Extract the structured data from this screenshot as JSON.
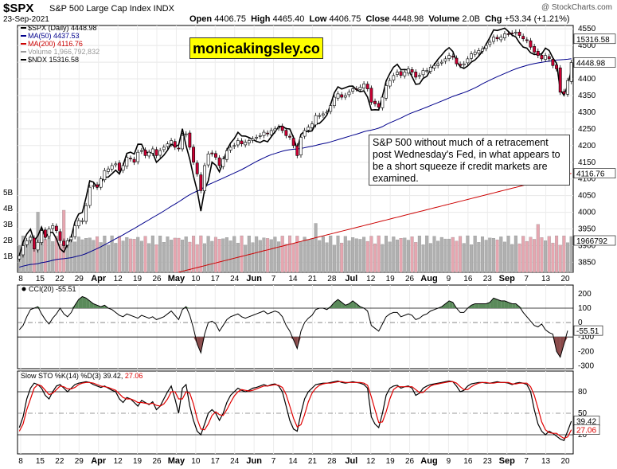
{
  "header": {
    "ticker": "$SPX",
    "description": "S&P 500 Large Cap Index INDX",
    "date": "23-Sep-2021",
    "open_label": "Open",
    "open": "4406.75",
    "high_label": "High",
    "high": "4465.40",
    "low_label": "Low",
    "low": "4406.75",
    "close_label": "Close",
    "close": "4448.98",
    "volume_label": "Volume",
    "volume": "2.0B",
    "chg_label": "Chg",
    "chg": "+53.34 (+1.21%)",
    "credit": "@ StockCharts.com"
  },
  "watermark": "monicakingsley.co",
  "annotation": "S&P 500 without much of a retracement post Wednesday's Fed, in what appears to be a short squeeze if credit markets are examined.",
  "colors": {
    "up_candle": "#ffffff",
    "down_candle": "#cc0033",
    "ma50": "#00008b",
    "ma200": "#cc0000",
    "ndx": "#000000",
    "volume_up": "#b0b0b0",
    "volume_down": "#e6a6b0",
    "cci_fill": "#5a8a5a",
    "cci_neg_fill": "#8a4a4a",
    "sto_k": "#000000",
    "sto_d": "#e00000"
  },
  "chart_data": [
    {
      "type": "candlestick",
      "legend": [
        {
          "label": "$SPX (Daily) 4448.98",
          "color": "#000000"
        },
        {
          "label": "MA(50) 4437.53",
          "color": "#00008b"
        },
        {
          "label": "MA(200) 4116.76",
          "color": "#cc0000"
        },
        {
          "label": "Volume 1,966,792,832",
          "color": "#999999"
        },
        {
          "label": "$NDX 15316.58",
          "color": "#000000"
        }
      ],
      "y_ticks": [
        "4550",
        "4500",
        "4450",
        "4400",
        "4350",
        "4300",
        "4250",
        "4200",
        "4150",
        "4100",
        "4050",
        "4000",
        "3950",
        "3900",
        "3850"
      ],
      "ylim": [
        3820,
        4560
      ],
      "value_tags": [
        "15316.58",
        "4448.98",
        "4116.76",
        "1966792"
      ],
      "volume_ticks": [
        "5B",
        "4B",
        "3B",
        "2B",
        "1B"
      ],
      "x_ticks": [
        "8",
        "15",
        "22",
        "29",
        "Apr",
        "12",
        "19",
        "26",
        "May",
        "10",
        "17",
        "24",
        "Jun",
        "7",
        "14",
        "21",
        "28",
        "Jul",
        "12",
        "19",
        "26",
        "Aug",
        "9",
        "16",
        "23",
        "Sep",
        "7",
        "13",
        "20"
      ],
      "spx_close": [
        3870,
        3900,
        3915,
        3925,
        3890,
        3910,
        3945,
        3925,
        3950,
        3960,
        3945,
        3915,
        3900,
        3915,
        3925,
        3960,
        3975,
        3975,
        4020,
        4075,
        4080,
        4075,
        4100,
        4125,
        4130,
        4140,
        4145,
        4125,
        4140,
        4165,
        4160,
        4150,
        4180,
        4185,
        4170,
        4180,
        4190,
        4170,
        4185,
        4195,
        4205,
        4215,
        4195,
        4190,
        4230,
        4235,
        4195,
        4150,
        4115,
        4065,
        4140,
        4175,
        4175,
        4165,
        4140,
        4160,
        4185,
        4195,
        4200,
        4215,
        4205,
        4210,
        4215,
        4220,
        4225,
        4230,
        4240,
        4235,
        4245,
        4250,
        4255,
        4245,
        4230,
        4225,
        4200,
        4170,
        4225,
        4245,
        4255,
        4265,
        4290,
        4290,
        4295,
        4300,
        4320,
        4345,
        4355,
        4345,
        4350,
        4360,
        4370,
        4370,
        4375,
        4385,
        4370,
        4330,
        4325,
        4315,
        4345,
        4380,
        4395,
        4410,
        4420,
        4410,
        4420,
        4430,
        4420,
        4405,
        4410,
        4425,
        4425,
        4435,
        4440,
        4445,
        4450,
        4460,
        4470,
        4465,
        4445,
        4440,
        4445,
        4460,
        4475,
        4480,
        4485,
        4490,
        4500,
        4510,
        4525,
        4520,
        4525,
        4535,
        4535,
        4535,
        4540,
        4530,
        4520,
        4515,
        4495,
        4480,
        4470,
        4460,
        4470,
        4460,
        4440,
        4430,
        4360,
        4355,
        4395,
        4449
      ]
    },
    {
      "type": "line",
      "title": "CCI(20) -55.51",
      "y_ticks": [
        "200",
        "100",
        "0",
        "-100",
        "-200",
        "-300"
      ],
      "ylim": [
        -320,
        260
      ],
      "value_tag": "-55.51",
      "values": [
        -50,
        -20,
        40,
        90,
        100,
        110,
        60,
        20,
        -10,
        30,
        60,
        100,
        60,
        40,
        70,
        120,
        160,
        180,
        170,
        150,
        130,
        120,
        110,
        120,
        100,
        90,
        70,
        50,
        40,
        60,
        50,
        40,
        30,
        50,
        40,
        30,
        40,
        20,
        30,
        40,
        60,
        80,
        50,
        20,
        90,
        110,
        50,
        -40,
        -150,
        -210,
        -80,
        0,
        10,
        -10,
        -60,
        -20,
        20,
        40,
        50,
        60,
        40,
        30,
        40,
        50,
        60,
        70,
        80,
        60,
        70,
        80,
        70,
        40,
        -20,
        -60,
        -120,
        -180,
        -60,
        0,
        30,
        50,
        90,
        100,
        100,
        90,
        110,
        140,
        160,
        140,
        120,
        130,
        150,
        130,
        110,
        100,
        80,
        -20,
        -40,
        -60,
        -10,
        40,
        60,
        70,
        70,
        40,
        50,
        60,
        50,
        20,
        30,
        50,
        60,
        80,
        90,
        100,
        110,
        130,
        150,
        140,
        100,
        70,
        70,
        100,
        120,
        130,
        130,
        130,
        130,
        140,
        170,
        160,
        150,
        150,
        140,
        130,
        130,
        110,
        70,
        40,
        10,
        -20,
        -30,
        -10,
        -50,
        -70,
        -80,
        -200,
        -240,
        -150,
        -56
      ]
    },
    {
      "type": "line",
      "title": "Slow STO %K(14) %D(3) 39.42, 27.06",
      "y_ticks": [
        "80",
        "50",
        "20"
      ],
      "ylim": [
        0,
        100
      ],
      "value_tags": [
        "39.42",
        "27.06"
      ],
      "x_ticks": [
        "8",
        "15",
        "22",
        "29",
        "Apr",
        "12",
        "19",
        "26",
        "May",
        "10",
        "17",
        "24",
        "Jun",
        "7",
        "14",
        "21",
        "28",
        "Jul",
        "12",
        "19",
        "26",
        "Aug",
        "9",
        "16",
        "23",
        "Sep",
        "7",
        "13",
        "20"
      ],
      "series": [
        {
          "name": "%K(14)",
          "values": [
            30,
            45,
            70,
            85,
            92,
            90,
            85,
            75,
            70,
            80,
            88,
            90,
            85,
            80,
            85,
            90,
            92,
            93,
            94,
            93,
            90,
            88,
            86,
            88,
            85,
            82,
            80,
            70,
            65,
            72,
            70,
            65,
            60,
            68,
            65,
            62,
            66,
            55,
            60,
            70,
            80,
            88,
            70,
            50,
            85,
            90,
            60,
            40,
            25,
            20,
            35,
            50,
            55,
            50,
            40,
            50,
            65,
            75,
            80,
            85,
            82,
            80,
            82,
            85,
            86,
            88,
            90,
            88,
            90,
            91,
            88,
            80,
            60,
            40,
            28,
            25,
            50,
            70,
            80,
            85,
            90,
            91,
            92,
            92,
            93,
            94,
            95,
            93,
            92,
            93,
            94,
            93,
            92,
            90,
            85,
            45,
            35,
            30,
            50,
            75,
            85,
            88,
            89,
            85,
            87,
            88,
            85,
            75,
            78,
            85,
            88,
            90,
            91,
            92,
            93,
            94,
            95,
            94,
            88,
            80,
            82,
            88,
            91,
            92,
            93,
            93,
            92,
            92,
            93,
            94,
            93,
            93,
            92,
            90,
            92,
            93,
            92,
            90,
            80,
            55,
            35,
            25,
            20,
            25,
            22,
            18,
            14,
            12,
            25,
            39
          ]
        },
        {
          "name": "%D(3)",
          "values": [
            25,
            35,
            55,
            70,
            85,
            90,
            88,
            82,
            76,
            78,
            83,
            88,
            87,
            84,
            84,
            86,
            90,
            92,
            93,
            93,
            92,
            90,
            88,
            87,
            86,
            84,
            82,
            77,
            72,
            70,
            70,
            68,
            65,
            65,
            64,
            63,
            64,
            61,
            60,
            63,
            70,
            80,
            80,
            70,
            70,
            80,
            78,
            63,
            42,
            28,
            27,
            35,
            47,
            52,
            48,
            47,
            55,
            65,
            74,
            80,
            83,
            82,
            81,
            82,
            84,
            86,
            88,
            88,
            89,
            90,
            89,
            86,
            76,
            60,
            43,
            31,
            34,
            48,
            66,
            78,
            85,
            89,
            91,
            92,
            92,
            93,
            94,
            94,
            93,
            93,
            93,
            93,
            93,
            92,
            89,
            73,
            55,
            37,
            38,
            52,
            70,
            83,
            87,
            87,
            87,
            87,
            87,
            83,
            79,
            79,
            84,
            88,
            90,
            91,
            92,
            93,
            94,
            94,
            92,
            87,
            83,
            83,
            87,
            90,
            92,
            93,
            93,
            92,
            92,
            93,
            93,
            93,
            93,
            91,
            91,
            92,
            92,
            92,
            87,
            75,
            57,
            38,
            27,
            23,
            22,
            22,
            18,
            15,
            17,
            27
          ]
        }
      ]
    }
  ]
}
